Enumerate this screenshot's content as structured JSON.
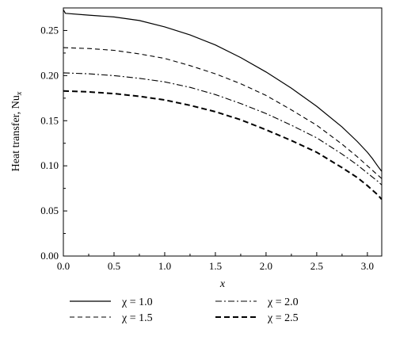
{
  "chart_data": {
    "type": "line",
    "xlabel": "x",
    "ylabel_main": "Heat transfer, Nu",
    "ylabel_sub": "x",
    "xlim": [
      0,
      3.14159
    ],
    "ylim": [
      0,
      0.275
    ],
    "xticks": [
      "0.0",
      "0.5",
      "1.0",
      "1.5",
      "2.0",
      "2.5",
      "3.0"
    ],
    "yticks": [
      "0.00",
      "0.05",
      "0.10",
      "0.15",
      "0.20",
      "0.25"
    ],
    "grid": false,
    "legend_position": "bottom",
    "series": [
      {
        "name": "χ = 1.0",
        "dash": "solid",
        "width": 1.2,
        "points": [
          [
            0.0,
            0.273
          ],
          [
            0.02,
            0.269
          ],
          [
            0.25,
            0.267
          ],
          [
            0.5,
            0.265
          ],
          [
            0.75,
            0.261
          ],
          [
            1.0,
            0.254
          ],
          [
            1.25,
            0.245
          ],
          [
            1.5,
            0.234
          ],
          [
            1.75,
            0.22
          ],
          [
            2.0,
            0.204
          ],
          [
            2.25,
            0.186
          ],
          [
            2.5,
            0.166
          ],
          [
            2.75,
            0.143
          ],
          [
            2.9,
            0.127
          ],
          [
            3.0,
            0.115
          ],
          [
            3.05,
            0.108
          ],
          [
            3.1,
            0.1
          ],
          [
            3.14,
            0.094
          ]
        ]
      },
      {
        "name": "χ = 1.5",
        "dash": "dashed",
        "width": 1.1,
        "points": [
          [
            0.0,
            0.231
          ],
          [
            0.25,
            0.23
          ],
          [
            0.5,
            0.228
          ],
          [
            0.75,
            0.224
          ],
          [
            1.0,
            0.219
          ],
          [
            1.25,
            0.211
          ],
          [
            1.5,
            0.202
          ],
          [
            1.75,
            0.191
          ],
          [
            2.0,
            0.178
          ],
          [
            2.25,
            0.162
          ],
          [
            2.5,
            0.145
          ],
          [
            2.75,
            0.124
          ],
          [
            2.9,
            0.11
          ],
          [
            3.0,
            0.1
          ],
          [
            3.1,
            0.09
          ],
          [
            3.14,
            0.086
          ]
        ]
      },
      {
        "name": "χ = 2.0",
        "dash": "dashdot",
        "width": 1.1,
        "points": [
          [
            0.0,
            0.203
          ],
          [
            0.25,
            0.202
          ],
          [
            0.5,
            0.2
          ],
          [
            0.75,
            0.197
          ],
          [
            1.0,
            0.193
          ],
          [
            1.25,
            0.187
          ],
          [
            1.5,
            0.179
          ],
          [
            1.75,
            0.169
          ],
          [
            2.0,
            0.158
          ],
          [
            2.25,
            0.145
          ],
          [
            2.5,
            0.131
          ],
          [
            2.75,
            0.113
          ],
          [
            2.9,
            0.101
          ],
          [
            3.0,
            0.092
          ],
          [
            3.1,
            0.083
          ],
          [
            3.14,
            0.079
          ]
        ]
      },
      {
        "name": "χ = 2.5",
        "dash": "bold-dashed",
        "width": 2.0,
        "points": [
          [
            0.0,
            0.183
          ],
          [
            0.25,
            0.182
          ],
          [
            0.5,
            0.18
          ],
          [
            0.75,
            0.177
          ],
          [
            1.0,
            0.173
          ],
          [
            1.25,
            0.167
          ],
          [
            1.5,
            0.16
          ],
          [
            1.75,
            0.151
          ],
          [
            2.0,
            0.14
          ],
          [
            2.25,
            0.128
          ],
          [
            2.5,
            0.115
          ],
          [
            2.75,
            0.098
          ],
          [
            2.9,
            0.087
          ],
          [
            3.0,
            0.078
          ],
          [
            3.1,
            0.068
          ],
          [
            3.14,
            0.063
          ]
        ]
      }
    ]
  }
}
